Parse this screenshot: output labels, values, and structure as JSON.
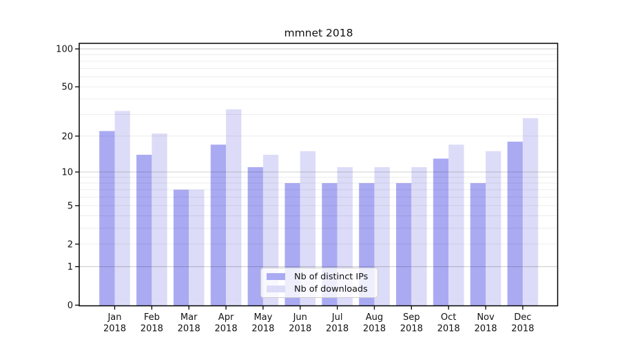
{
  "chart_data": {
    "type": "bar",
    "title": "mmnet 2018",
    "months": [
      "Jan",
      "Feb",
      "Mar",
      "Apr",
      "May",
      "Jun",
      "Jul",
      "Aug",
      "Sep",
      "Oct",
      "Nov",
      "Dec"
    ],
    "year": "2018",
    "categories": [
      "Jan 2018",
      "Feb 2018",
      "Mar 2018",
      "Apr 2018",
      "May 2018",
      "Jun 2018",
      "Jul 2018",
      "Aug 2018",
      "Sep 2018",
      "Oct 2018",
      "Nov 2018",
      "Dec 2018"
    ],
    "series": [
      {
        "name": "Nb of distinct IPs",
        "color": "#aaaaf3",
        "values": [
          22,
          14,
          7,
          17,
          11,
          8,
          8,
          8,
          8,
          13,
          8,
          18
        ]
      },
      {
        "name": "Nb of downloads",
        "color": "#dcdcf8",
        "values": [
          32,
          21,
          7,
          33,
          14,
          15,
          11,
          11,
          11,
          17,
          15,
          28
        ]
      }
    ],
    "yscale": "symlog (log1p)",
    "ytick_labels": [
      "0",
      "1",
      "2",
      "5",
      "10",
      "20",
      "50",
      "100"
    ],
    "yticks": [
      0,
      1,
      2,
      5,
      10,
      20,
      50,
      100
    ],
    "major_gridlines": [
      1,
      10,
      100
    ],
    "minor_gridlines": [
      2,
      3,
      4,
      5,
      6,
      7,
      8,
      9,
      20,
      30,
      40,
      50,
      60,
      70,
      80,
      90
    ],
    "ylim": [
      0,
      110
    ],
    "grid": true,
    "legend_position": "lower center",
    "colors": {
      "major_grid": "rgba(0,0,0,0.19)",
      "minor_grid": "rgba(0,0,0,0.075)",
      "spine": "#000000",
      "text": "#111111"
    }
  }
}
